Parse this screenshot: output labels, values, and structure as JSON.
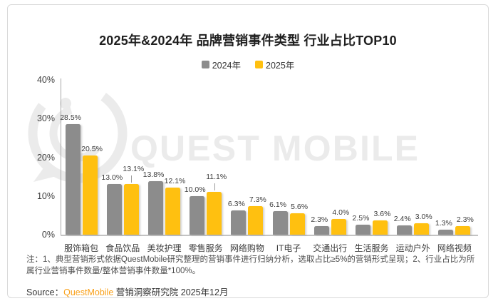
{
  "title": "2025年&2024年 品牌营销事件类型 行业占比TOP10",
  "legend": {
    "items": [
      {
        "label": "2024年",
        "color": "#8C8C8C"
      },
      {
        "label": "2025年",
        "color": "#FFC010"
      }
    ]
  },
  "watermark": {
    "text": "QUEST MOBILE",
    "color": "#ebebeb"
  },
  "chart_data": {
    "type": "bar",
    "categories": [
      "服饰箱包",
      "食品饮品",
      "美妆护理",
      "零售服务",
      "网络购物",
      "IT电子",
      "交通出行",
      "生活服务",
      "运动户外",
      "网络视频"
    ],
    "series": [
      {
        "name": "2024年",
        "color": "#8C8C8C",
        "values": [
          28.5,
          13.0,
          13.8,
          10.0,
          6.3,
          6.1,
          2.3,
          2.5,
          2.4,
          1.3
        ]
      },
      {
        "name": "2025年",
        "color": "#FFC010",
        "values": [
          20.5,
          13.1,
          12.1,
          11.1,
          7.3,
          5.6,
          4.0,
          3.6,
          3.0,
          2.3
        ]
      }
    ],
    "value_suffix": "%",
    "ylim": [
      0,
      40
    ],
    "yticks": [
      40,
      30,
      20,
      10,
      0
    ],
    "ytick_suffix": "%",
    "grid": false,
    "legend_position": "top",
    "raised_label_indices_2025": [
      1,
      3
    ],
    "title": "2025年&2024年 品牌营销事件类型 行业占比TOP10"
  },
  "note": "注：1、典型营销形式依据QuestMobile研究整理的营销事件进行归纳分析，选取占比≥5%的营销形式呈现；2、行业占比为所属行业营销事件数量/整体营销事件数量*100%。",
  "source": {
    "prefix": "Source：",
    "brand": "QuestMobile",
    "brand_color": "#F9A11B",
    "rest": " 营销洞察研究院 2025年12月"
  }
}
